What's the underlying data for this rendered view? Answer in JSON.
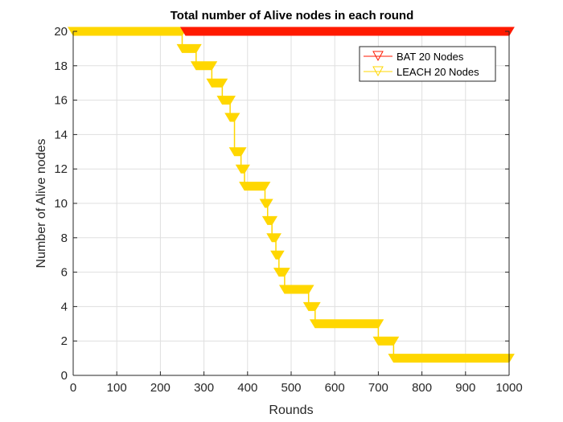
{
  "chart_data": {
    "type": "line",
    "title": "Total number of Alive nodes in each round",
    "xlabel": "Rounds",
    "ylabel": "Number of Alive nodes",
    "xlim": [
      0,
      1000
    ],
    "ylim": [
      0,
      20
    ],
    "xticks": [
      0,
      100,
      200,
      300,
      400,
      500,
      600,
      700,
      800,
      900,
      1000
    ],
    "yticks": [
      0,
      2,
      4,
      6,
      8,
      10,
      12,
      14,
      16,
      18,
      20
    ],
    "grid": true,
    "legend_position": "northeast",
    "series": [
      {
        "name": "BAT 20 Nodes",
        "color": "#ff1a00",
        "marker": "down-triangle",
        "steps": [
          {
            "x_start": 0,
            "x_end": 1000,
            "y": 20
          }
        ]
      },
      {
        "name": "LEACH 20 Nodes",
        "color": "#ffd700",
        "marker": "down-triangle",
        "steps": [
          {
            "x_start": 0,
            "x_end": 250,
            "y": 20
          },
          {
            "x_start": 250,
            "x_end": 282,
            "y": 19
          },
          {
            "x_start": 282,
            "x_end": 318,
            "y": 18
          },
          {
            "x_start": 318,
            "x_end": 342,
            "y": 17
          },
          {
            "x_start": 342,
            "x_end": 360,
            "y": 16
          },
          {
            "x_start": 360,
            "x_end": 370,
            "y": 15
          },
          {
            "x_start": 370,
            "x_end": 385,
            "y": 13
          },
          {
            "x_start": 385,
            "x_end": 393,
            "y": 12
          },
          {
            "x_start": 393,
            "x_end": 440,
            "y": 11
          },
          {
            "x_start": 440,
            "x_end": 446,
            "y": 10
          },
          {
            "x_start": 446,
            "x_end": 456,
            "y": 9
          },
          {
            "x_start": 456,
            "x_end": 465,
            "y": 8
          },
          {
            "x_start": 465,
            "x_end": 472,
            "y": 7
          },
          {
            "x_start": 472,
            "x_end": 485,
            "y": 6
          },
          {
            "x_start": 485,
            "x_end": 540,
            "y": 5
          },
          {
            "x_start": 540,
            "x_end": 555,
            "y": 4
          },
          {
            "x_start": 555,
            "x_end": 700,
            "y": 3
          },
          {
            "x_start": 700,
            "x_end": 735,
            "y": 2
          },
          {
            "x_start": 735,
            "x_end": 1000,
            "y": 1
          }
        ]
      }
    ]
  },
  "legend": {
    "items": [
      {
        "label": "BAT 20 Nodes",
        "color": "#ff1a00"
      },
      {
        "label": "LEACH 20 Nodes",
        "color": "#ffd700"
      }
    ]
  }
}
